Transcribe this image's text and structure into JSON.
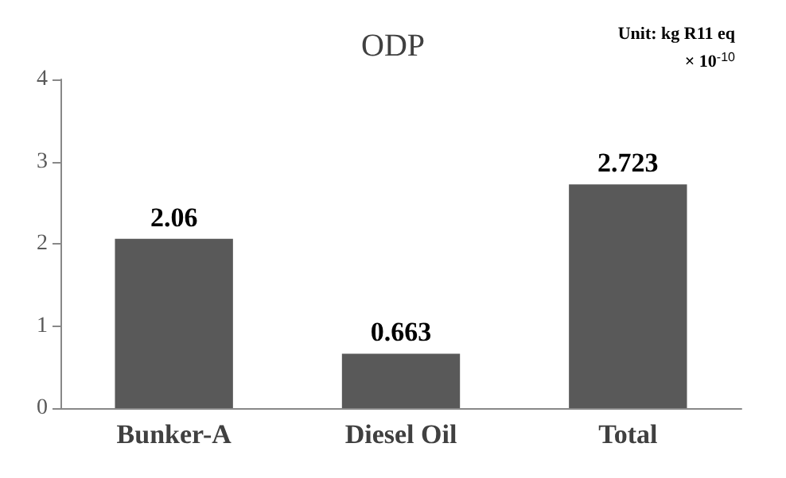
{
  "chart_data": {
    "type": "bar",
    "title": "ODP",
    "annotations": [
      "Unit: kg R11 eq",
      "× 10$^{-10}$"
    ],
    "categories": [
      "Bunker-A",
      "Diesel Oil",
      "Total"
    ],
    "values": [
      2.06,
      0.663,
      2.723
    ],
    "color": "#595959",
    "ylim": [
      0,
      4
    ],
    "yticks": [
      0,
      1,
      2,
      3,
      4
    ],
    "grid": false,
    "data_labels": true
  }
}
